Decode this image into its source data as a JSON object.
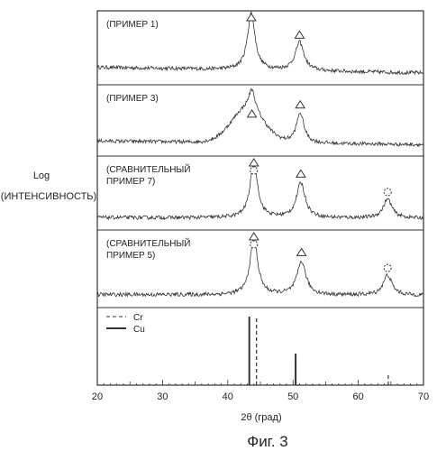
{
  "figure": {
    "caption": "Фиг. 3",
    "ylabel_line1": "Log",
    "ylabel_line2": "(ИНТЕНСИВНОСТЬ)",
    "xlabel": "2θ  (град)"
  },
  "chart_data": {
    "type": "line",
    "xlabel": "2θ (град)",
    "ylabel": "Log (ИНТЕНСИВНОСТЬ)",
    "xlim": [
      20,
      70
    ],
    "x_ticks": [
      20,
      30,
      40,
      50,
      60,
      70
    ],
    "grid": false,
    "panels": [
      {
        "label_lines": [
          "(ПРИМЕР 1)"
        ],
        "baseline": 0.08,
        "background": {
          "start": 0.28,
          "end": 0.1,
          "tilt": 0.0
        },
        "peaks": [
          {
            "x": 43.6,
            "height": 0.9,
            "width": 0.7,
            "marker": "triangle"
          },
          {
            "x": 51.0,
            "height": 0.45,
            "width": 0.8,
            "marker": "triangle"
          }
        ]
      },
      {
        "label_lines": [
          "(ПРИМЕР 3)"
        ],
        "baseline": 0.08,
        "background": {
          "start": 0.22,
          "end": 0.1,
          "tilt": 0.0
        },
        "broad_hump": {
          "x": 43.0,
          "height": 0.55,
          "width": 3.5
        },
        "peaks": [
          {
            "x": 43.7,
            "height": 0.35,
            "width": 0.6,
            "marker": "triangle"
          },
          {
            "x": 51.1,
            "height": 0.5,
            "width": 0.7,
            "marker": "triangle"
          }
        ]
      },
      {
        "label_lines": [
          "(СРАВНИТЕЛЬНЫЙ",
          "ПРИМЕР 7)"
        ],
        "baseline": 0.08,
        "background": {
          "start": 0.12,
          "end": 0.1,
          "tilt": 0.0
        },
        "peaks": [
          {
            "x": 44.0,
            "height": 0.88,
            "width": 0.7,
            "marker": "triangle-circle"
          },
          {
            "x": 51.2,
            "height": 0.55,
            "width": 0.8,
            "marker": "triangle"
          },
          {
            "x": 64.5,
            "height": 0.3,
            "width": 0.8,
            "marker": "circle"
          }
        ]
      },
      {
        "label_lines": [
          "(СРАВНИТЕЛЬНЫЙ",
          "ПРИМЕР 5)"
        ],
        "baseline": 0.08,
        "background": {
          "start": 0.12,
          "end": 0.1,
          "tilt": 0.0
        },
        "peaks": [
          {
            "x": 44.0,
            "height": 0.85,
            "width": 0.7,
            "marker": "triangle-circle"
          },
          {
            "x": 51.3,
            "height": 0.5,
            "width": 0.8,
            "marker": "triangle"
          },
          {
            "x": 64.5,
            "height": 0.3,
            "width": 0.8,
            "marker": "circle"
          }
        ]
      }
    ],
    "reference_panel": {
      "legend": [
        {
          "name": "Cr",
          "style": "dashed"
        },
        {
          "name": "Cu",
          "style": "solid"
        }
      ],
      "cu_lines": [
        {
          "x": 43.3,
          "height": 1.0
        },
        {
          "x": 50.4,
          "height": 0.46
        }
      ],
      "cr_lines": [
        {
          "x": 44.4,
          "height": 1.0
        },
        {
          "x": 64.6,
          "height": 0.18
        }
      ]
    }
  }
}
